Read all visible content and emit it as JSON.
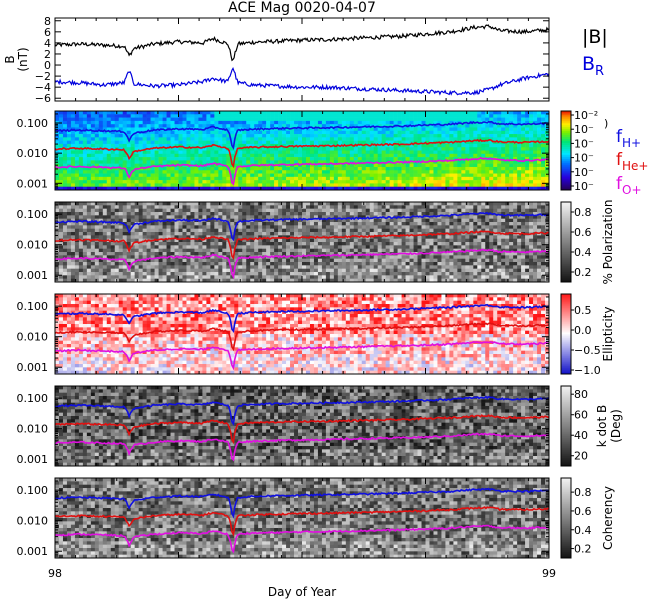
{
  "figure": {
    "title": "ACE Mag 0020-04-07"
  },
  "chart_data": [
    {
      "type": "line",
      "panel": "magnetic-field",
      "ylabel": "B (nT)",
      "ylabel_main": "B",
      "ylabel_unit": "(nT)",
      "ylim": [
        -6.5,
        8.5
      ],
      "yticks": [
        8,
        6,
        4,
        2,
        0,
        -2,
        -4,
        -6
      ],
      "ytick_labels": [
        "8",
        "6",
        "4",
        "2",
        "0",
        "−2",
        "−4",
        "−6"
      ],
      "x": [
        98.0,
        98.05,
        98.1,
        98.14,
        98.15,
        98.16,
        98.2,
        98.25,
        98.3,
        98.32,
        98.35,
        98.36,
        98.37,
        98.4,
        98.45,
        98.5,
        98.55,
        98.6,
        98.65,
        98.7,
        98.75,
        98.8,
        98.85,
        98.88,
        98.9,
        98.95,
        99.0
      ],
      "series": [
        {
          "name": "|B|",
          "color": "#000000",
          "values": [
            3.6,
            3.8,
            3.6,
            3.4,
            1.7,
            3.0,
            3.8,
            4.2,
            4.0,
            4.8,
            3.8,
            0.6,
            3.8,
            4.1,
            4.3,
            4.5,
            4.6,
            4.8,
            5.0,
            5.2,
            5.6,
            6.0,
            6.8,
            7.0,
            6.2,
            6.0,
            6.4
          ]
        },
        {
          "name": "B_R",
          "color": "#0000dd",
          "values": [
            -3.0,
            -3.2,
            -3.6,
            -3.2,
            -1.0,
            -3.4,
            -3.8,
            -3.6,
            -3.0,
            -2.4,
            -3.0,
            -0.4,
            -3.2,
            -3.6,
            -3.8,
            -4.0,
            -4.0,
            -4.2,
            -4.4,
            -4.6,
            -4.8,
            -5.0,
            -5.0,
            -4.4,
            -3.6,
            -2.4,
            -1.6
          ]
        }
      ],
      "legend": [
        {
          "label": "|B|",
          "color": "#000000"
        },
        {
          "label": "B",
          "sub": "R",
          "color": "#0000dd"
        }
      ]
    },
    {
      "type": "heatmap",
      "panel": "power-spectrum",
      "yscale": "log",
      "ylim": [
        0.0006,
        0.25
      ],
      "yticks": [
        0.001,
        0.01,
        0.1
      ],
      "ytick_labels": [
        "0.001",
        "0.010",
        "0.100"
      ],
      "colormap": "rainbow",
      "colorbar": {
        "tick_labels": [
          "10⁻²",
          "10⁻",
          "10⁻",
          "10⁻",
          "10⁻",
          "10⁻"
        ],
        "bracket": ")"
      }
    },
    {
      "type": "heatmap",
      "panel": "polarization",
      "yscale": "log",
      "ylim": [
        0.0006,
        0.25
      ],
      "yticks": [
        0.001,
        0.01,
        0.1
      ],
      "ytick_labels": [
        "0.001",
        "0.010",
        "0.100"
      ],
      "colormap": "gray",
      "colorbar": {
        "label": "% Polarization",
        "range": [
          0.1,
          0.9
        ],
        "ticks": [
          0.8,
          0.6,
          0.4,
          0.2
        ],
        "tick_labels": [
          "0.8",
          "0.6",
          "0.4",
          "0.2"
        ]
      }
    },
    {
      "type": "heatmap",
      "panel": "ellipticity",
      "yscale": "log",
      "ylim": [
        0.0006,
        0.25
      ],
      "yticks": [
        0.001,
        0.01,
        0.1
      ],
      "ytick_labels": [
        "0.001",
        "0.010",
        "0.100"
      ],
      "colormap": "blue-white-red",
      "colorbar": {
        "label": "Ellipticity",
        "range": [
          -1.1,
          0.9
        ],
        "ticks": [
          0.5,
          0.0,
          -0.5,
          -1.0
        ],
        "tick_labels": [
          "0.5",
          "0.0",
          "−0.5",
          "−1.0"
        ]
      }
    },
    {
      "type": "heatmap",
      "panel": "k-dot-b",
      "yscale": "log",
      "ylim": [
        0.0006,
        0.25
      ],
      "yticks": [
        0.001,
        0.01,
        0.1
      ],
      "ytick_labels": [
        "0.001",
        "0.010",
        "0.100"
      ],
      "colormap": "gray",
      "colorbar": {
        "label": "k dot B",
        "label2": "(Deg)",
        "range": [
          10,
          88
        ],
        "ticks": [
          80,
          60,
          40,
          20
        ],
        "tick_labels": [
          "80",
          "60",
          "40",
          "20"
        ]
      }
    },
    {
      "type": "heatmap",
      "panel": "coherency",
      "yscale": "log",
      "ylim": [
        0.0006,
        0.25
      ],
      "yticks": [
        0.001,
        0.01,
        0.1
      ],
      "ytick_labels": [
        "0.001",
        "0.010",
        "0.100"
      ],
      "colormap": "gray",
      "colorbar": {
        "label": "Coherency",
        "range": [
          0.1,
          0.95
        ],
        "ticks": [
          0.8,
          0.6,
          0.4,
          0.2
        ],
        "tick_labels": [
          "0.8",
          "0.6",
          "0.4",
          "0.2"
        ]
      }
    }
  ],
  "gyro_lines": {
    "x": [
      98.0,
      98.05,
      98.1,
      98.14,
      98.15,
      98.16,
      98.2,
      98.25,
      98.3,
      98.32,
      98.35,
      98.36,
      98.37,
      98.4,
      98.45,
      98.5,
      98.55,
      98.6,
      98.65,
      98.7,
      98.75,
      98.8,
      98.85,
      98.88,
      98.9,
      98.95,
      99.0
    ],
    "series": [
      {
        "name": "H+",
        "color": "#1010e0",
        "values": [
          0.055,
          0.058,
          0.055,
          0.052,
          0.026,
          0.046,
          0.058,
          0.064,
          0.061,
          0.073,
          0.058,
          0.009,
          0.058,
          0.062,
          0.066,
          0.068,
          0.07,
          0.073,
          0.076,
          0.079,
          0.085,
          0.091,
          0.104,
          0.107,
          0.094,
          0.091,
          0.097
        ]
      },
      {
        "name": "He+",
        "color": "#e01010",
        "values": [
          0.0137,
          0.0145,
          0.0137,
          0.013,
          0.0065,
          0.0114,
          0.0145,
          0.016,
          0.0152,
          0.0183,
          0.0145,
          0.0023,
          0.0145,
          0.0156,
          0.0164,
          0.0171,
          0.0175,
          0.0183,
          0.019,
          0.0198,
          0.0213,
          0.0228,
          0.0259,
          0.0267,
          0.0236,
          0.0228,
          0.0244
        ]
      },
      {
        "name": "O+",
        "color": "#e010e0",
        "values": [
          0.0034,
          0.0036,
          0.0034,
          0.0032,
          0.0016,
          0.0029,
          0.0036,
          0.004,
          0.0038,
          0.0046,
          0.0036,
          0.0006,
          0.0036,
          0.0039,
          0.0041,
          0.0043,
          0.0044,
          0.0046,
          0.0048,
          0.005,
          0.0053,
          0.0057,
          0.0065,
          0.0067,
          0.0059,
          0.0057,
          0.0061
        ]
      }
    ],
    "legend": [
      {
        "label": "f",
        "sub": "H+",
        "color": "#1010e0"
      },
      {
        "label": "f",
        "sub": "He+",
        "color": "#e01010"
      },
      {
        "label": "f",
        "sub": "O+",
        "color": "#e010e0"
      }
    ]
  },
  "x_axis": {
    "label": "Day of Year",
    "range": [
      98,
      99
    ],
    "tick_labels": [
      "98",
      "99"
    ]
  }
}
